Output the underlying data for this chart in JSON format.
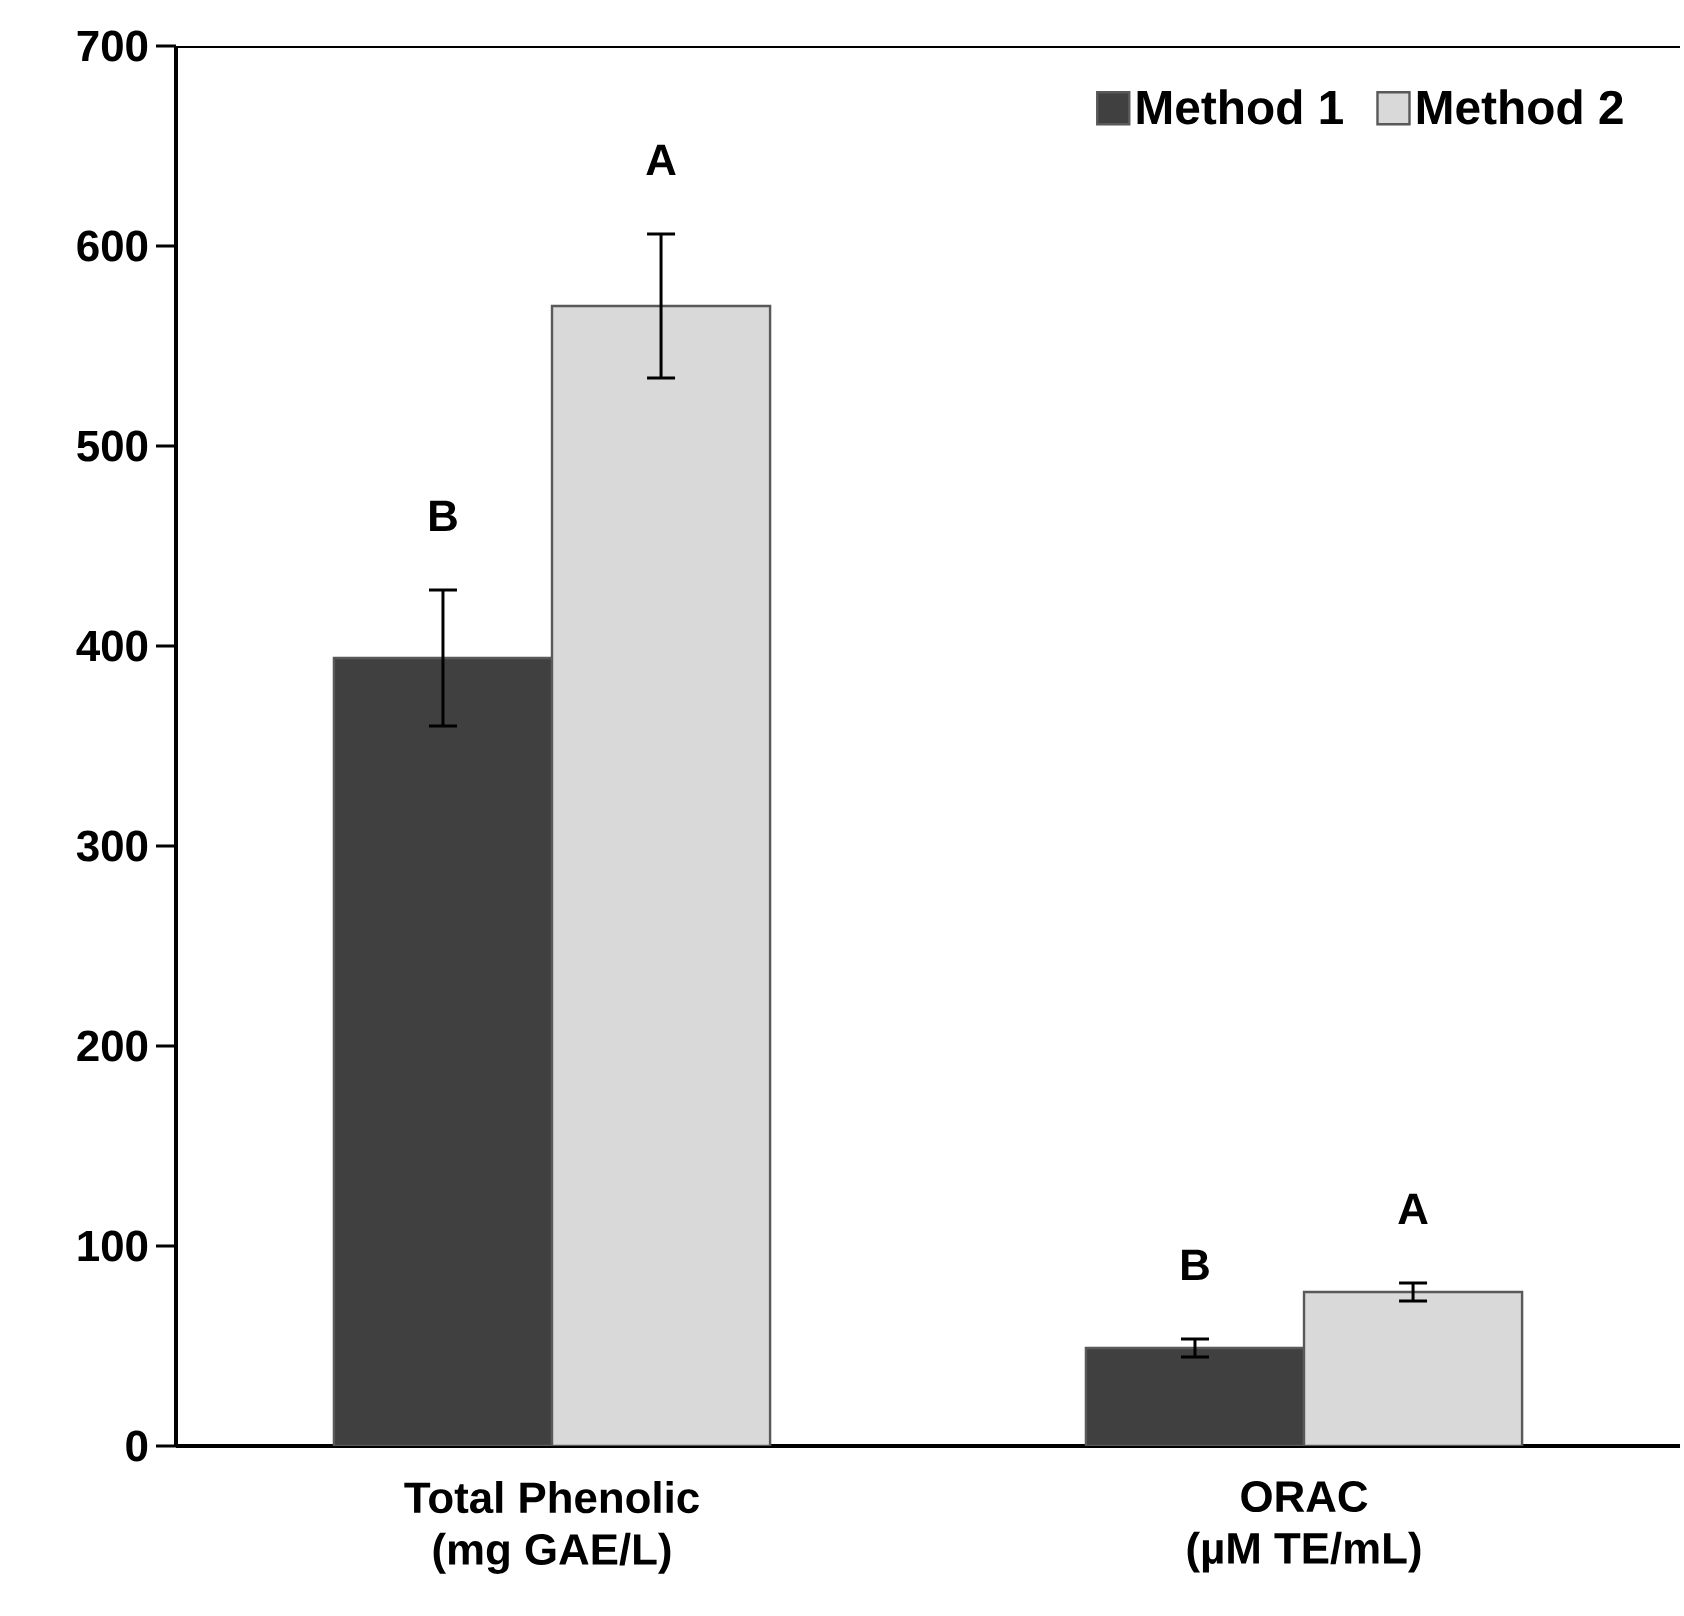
{
  "chart_data": {
    "type": "bar",
    "categories": [
      "Total Phenolic (mg GAE/L)",
      "ORAC (µM TE/mL)"
    ],
    "series": [
      {
        "name": "Method 1",
        "color": "#404040",
        "values": [
          394,
          49
        ],
        "errors": [
          34,
          4.5
        ]
      },
      {
        "name": "Method 2",
        "color": "#d9d9d9",
        "values": [
          570,
          77
        ],
        "errors": [
          36,
          4.5
        ]
      }
    ],
    "ylim": [
      0,
      700
    ],
    "yticks": [
      0,
      100,
      200,
      300,
      400,
      500,
      600,
      700
    ],
    "legend": "top right",
    "annotations": [
      "B",
      "A",
      "B",
      "A"
    ]
  }
}
